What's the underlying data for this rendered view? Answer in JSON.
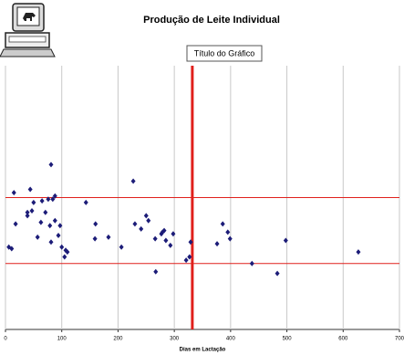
{
  "chart_data": {
    "type": "scatter",
    "title": "Produção de Leite Individual",
    "legend_title": "Título do Gráfico",
    "xlabel": "Dias em Lactação",
    "color": "#1c1c78",
    "x": [
      6,
      11,
      15,
      18,
      39,
      39,
      44,
      47,
      50,
      57,
      63,
      65,
      71,
      76,
      79,
      81,
      81,
      84,
      88,
      88,
      94,
      97,
      100,
      105,
      107,
      110,
      143,
      159,
      160,
      183,
      206,
      227,
      230,
      241,
      250,
      254,
      266,
      267,
      277,
      279,
      282,
      285,
      293,
      298,
      321,
      327,
      329,
      376,
      386,
      395,
      399,
      438,
      483,
      498,
      627
    ],
    "values": [
      5.0,
      4.9,
      8.3,
      6.4,
      7.1,
      6.9,
      8.5,
      7.2,
      7.7,
      5.6,
      6.5,
      7.8,
      7.1,
      7.9,
      6.3,
      5.3,
      10.0,
      7.9,
      8.1,
      6.6,
      5.7,
      6.3,
      5.0,
      4.4,
      4.8,
      4.7,
      7.7,
      5.5,
      6.4,
      5.6,
      5.0,
      9.0,
      6.4,
      6.1,
      6.9,
      6.6,
      5.5,
      3.5,
      5.8,
      5.9,
      6.0,
      5.4,
      5.1,
      5.8,
      4.2,
      4.4,
      5.3,
      5.2,
      6.4,
      5.9,
      5.5,
      4.0,
      3.4,
      5.4,
      4.7
    ],
    "xlim": [
      0,
      700
    ],
    "xticks": [
      0,
      100,
      200,
      300,
      400,
      500,
      600,
      700
    ],
    "ylim": [
      0,
      16
    ],
    "grid": true,
    "hlines": [
      4,
      8
    ],
    "vline": 332,
    "line_color": "#e0201c"
  }
}
